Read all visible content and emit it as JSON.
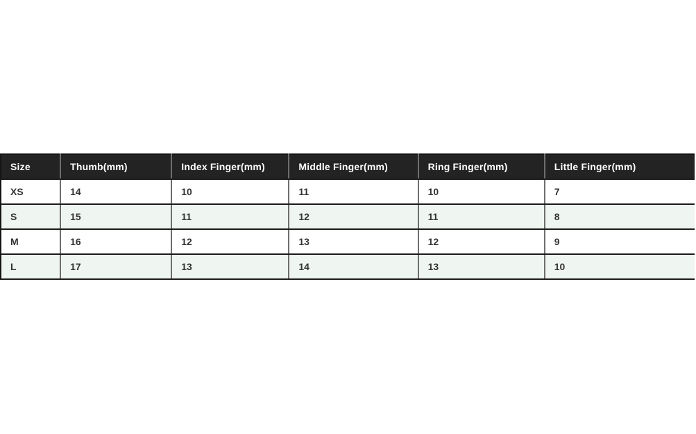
{
  "page": {
    "background": "#ffffff"
  },
  "chart_data": {
    "type": "table",
    "columns": [
      "Size",
      "Thumb(mm)",
      "Index Finger(mm)",
      "Middle Finger(mm)",
      "Ring Finger(mm)",
      "Little Finger(mm)"
    ],
    "rows": [
      [
        "XS",
        "14",
        "10",
        "11",
        "10",
        "7"
      ],
      [
        "S",
        "15",
        "11",
        "12",
        "11",
        "8"
      ],
      [
        "M",
        "16",
        "12",
        "13",
        "12",
        "9"
      ],
      [
        "L",
        "17",
        "13",
        "14",
        "13",
        "10"
      ]
    ]
  },
  "style": {
    "header_bg": "#232323",
    "header_text": "#ffffff",
    "row_bg": "#ffffff",
    "row_alt_bg": "#eff5f0",
    "cell_text": "#333333",
    "horizontal_border": "#1a1a1a",
    "vertical_border": "#6e6e6e"
  }
}
